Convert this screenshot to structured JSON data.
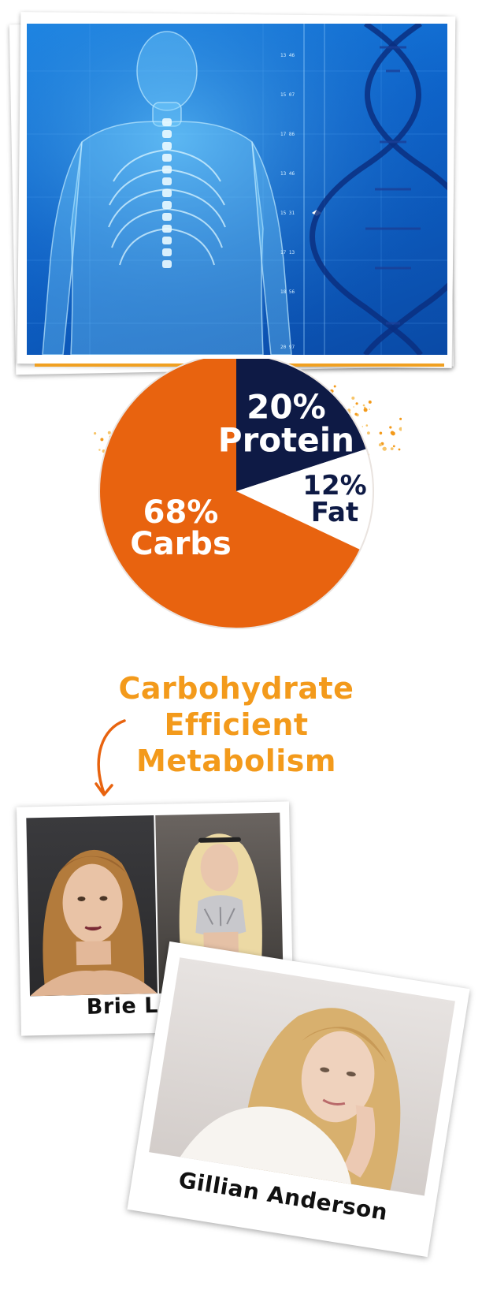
{
  "colors": {
    "carbs": "#e8630f",
    "protein": "#0e1a45",
    "fat": "#ffffff",
    "heading": "#f39a1b",
    "pie_label_light": "#ffffff",
    "pie_label_dark": "#0e1a45",
    "pie_outline": "#e9e3df",
    "top_photo_blue": "#1778de"
  },
  "chart_data": {
    "type": "pie",
    "title": "",
    "slices": [
      {
        "name": "Protein",
        "value": 20,
        "label_pct": "20%",
        "label_name": "Protein",
        "color": "#0e1a45",
        "label_color": "#ffffff"
      },
      {
        "name": "Fat",
        "value": 12,
        "label_pct": "12%",
        "label_name": "Fat",
        "color": "#ffffff",
        "label_color": "#0e1a45"
      },
      {
        "name": "Carbs",
        "value": 68,
        "label_pct": "68%",
        "label_name": "Carbs",
        "color": "#e8630f",
        "label_color": "#ffffff"
      }
    ]
  },
  "heading": {
    "line1": "Carbohydrate",
    "line2": "Efficient",
    "line3": "Metabolism"
  },
  "polaroids": [
    {
      "caption": "Brie Larson"
    },
    {
      "caption": "Gillian Anderson"
    }
  ],
  "top_photo": {
    "scale_ticks": [
      "13 46",
      "15 07",
      "17 86",
      "13 46",
      "15 31",
      "17 13",
      "18 56",
      "20 97"
    ]
  }
}
